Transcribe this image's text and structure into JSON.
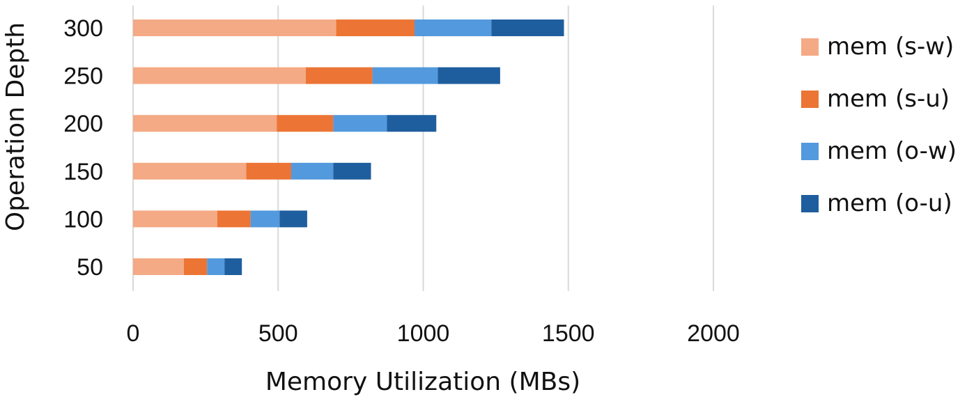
{
  "chart_data": {
    "type": "bar",
    "orientation": "horizontal",
    "stacked": true,
    "title": "",
    "xlabel": "Memory Utilization (MBs)",
    "ylabel": "Operation Depth",
    "xlim": [
      0,
      2000
    ],
    "xticks": [
      "0",
      "500",
      "1000",
      "1500",
      "2000"
    ],
    "grid": "vertical",
    "legend_position": "right",
    "categories": [
      "300",
      "250",
      "200",
      "150",
      "100",
      "50"
    ],
    "series": [
      {
        "name": "mem (s-w)",
        "color": "#F4AA85",
        "values": [
          700,
          595,
          495,
          390,
          290,
          175
        ]
      },
      {
        "name": "mem (s-u)",
        "color": "#EC7535",
        "values": [
          270,
          230,
          195,
          155,
          115,
          80
        ]
      },
      {
        "name": "mem (o-w)",
        "color": "#5399DD",
        "values": [
          265,
          225,
          185,
          145,
          100,
          60
        ]
      },
      {
        "name": "mem (o-u)",
        "color": "#1F5E9E",
        "values": [
          250,
          215,
          170,
          130,
          95,
          60
        ]
      }
    ]
  }
}
